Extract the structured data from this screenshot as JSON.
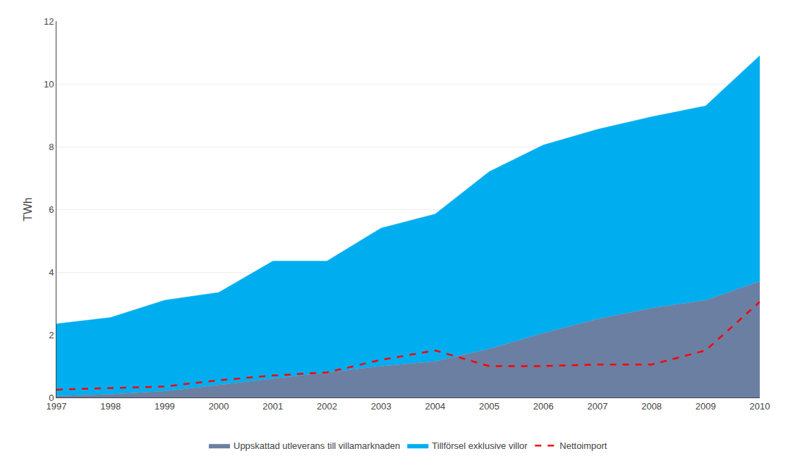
{
  "chart_data": {
    "type": "area",
    "x": [
      1997,
      1998,
      1999,
      2000,
      2001,
      2002,
      2003,
      2004,
      2005,
      2006,
      2007,
      2008,
      2009,
      2010
    ],
    "xlim": [
      1997,
      2010
    ],
    "xticks": [
      1997,
      1998,
      1999,
      2000,
      2001,
      2002,
      2003,
      2004,
      2005,
      2006,
      2007,
      2008,
      2009,
      2010
    ],
    "ylim": [
      0,
      12
    ],
    "yticks": [
      0,
      2,
      4,
      6,
      8,
      10,
      12
    ],
    "ylabel": "TWh",
    "grid": "y",
    "legend": "bottom",
    "stacked": false,
    "series": [
      {
        "name": "Uppskattad utleverans till villamarknaden",
        "type": "area",
        "color": "#6B7FA3",
        "values": [
          0.05,
          0.1,
          0.2,
          0.4,
          0.6,
          0.8,
          1.0,
          1.15,
          1.55,
          2.05,
          2.5,
          2.85,
          3.1,
          3.7
        ]
      },
      {
        "name": "Tillförsel exklusive villor",
        "type": "area",
        "color": "#00AEEF",
        "values": [
          2.35,
          2.55,
          3.1,
          3.35,
          4.35,
          4.35,
          5.4,
          5.85,
          7.2,
          8.05,
          8.55,
          8.95,
          9.3,
          10.9
        ]
      },
      {
        "name": "Nettoimport",
        "type": "line",
        "color": "#FF0000",
        "line_style": "dashed",
        "values": [
          0.25,
          0.3,
          0.35,
          0.55,
          0.7,
          0.8,
          1.2,
          1.5,
          1.0,
          1.0,
          1.05,
          1.05,
          1.5,
          3.05
        ]
      }
    ]
  }
}
